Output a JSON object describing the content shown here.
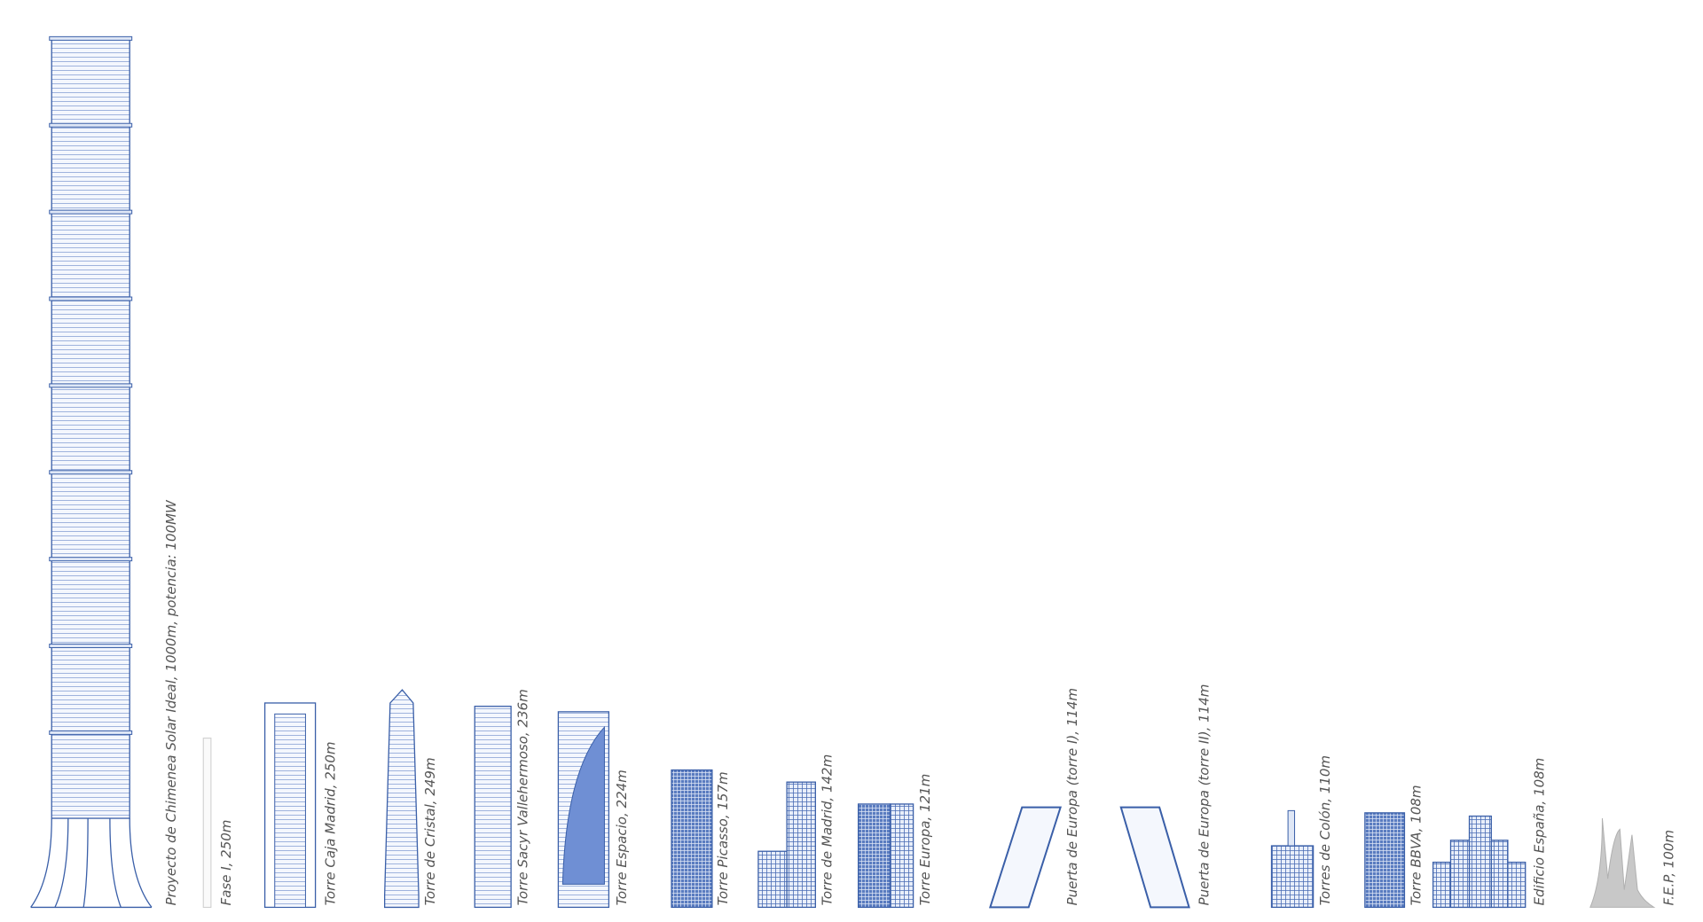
{
  "buildings": [
    {
      "label": "Proyecto de Chimenea Solar Ideal, 1000m, potencia: 100MW"
    },
    {
      "label": "Fase I, 250m"
    },
    {
      "label": "Torre Caja Madrid, 250m"
    },
    {
      "label": "Torre de Cristal, 249m"
    },
    {
      "label": "Torre Sacyr Vallehermoso, 236m"
    },
    {
      "label": "Torre Espacio, 224m"
    },
    {
      "label": "Torre Picasso, 157m"
    },
    {
      "label": "Torre de Madrid, 142m"
    },
    {
      "label": "Torre Europa, 121m"
    },
    {
      "label": "Puerta de Europa (torre I), 114m"
    },
    {
      "label": "Puerta de Europa (torre II), 114m"
    },
    {
      "label": "Torres de Colón, 110m"
    },
    {
      "label": "Torre BBVA, 108m"
    },
    {
      "label": "Edificio España, 108m"
    },
    {
      "label": "F.E.P, 100m"
    }
  ]
}
